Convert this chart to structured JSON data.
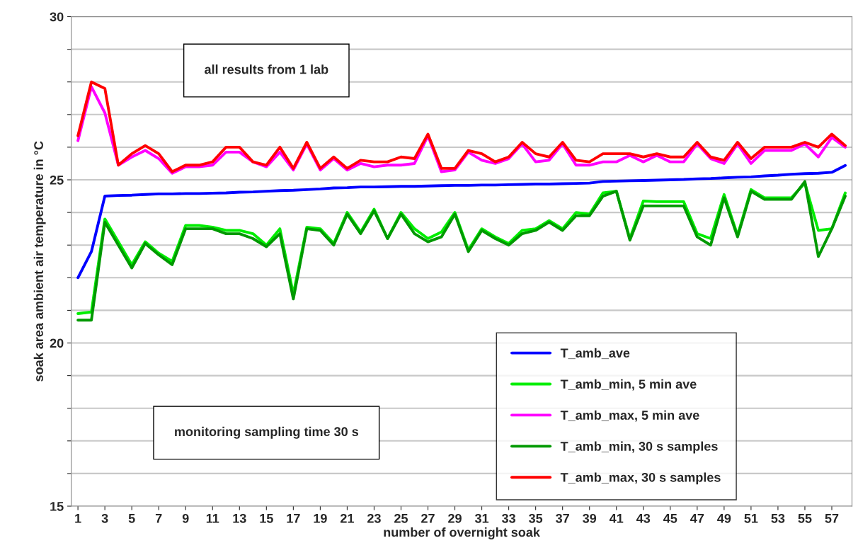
{
  "chart_data": {
    "type": "line",
    "xlabel": "number of overnight soak",
    "ylabel": "soak area ambient air temperature in °C",
    "annotations": [
      "all results from 1 lab",
      "monitoring sampling time 30 s"
    ],
    "x": [
      1,
      2,
      3,
      4,
      5,
      6,
      7,
      8,
      9,
      10,
      11,
      12,
      13,
      14,
      15,
      16,
      17,
      18,
      19,
      20,
      21,
      22,
      23,
      24,
      25,
      26,
      27,
      28,
      29,
      30,
      31,
      32,
      33,
      34,
      35,
      36,
      37,
      38,
      39,
      40,
      41,
      42,
      43,
      44,
      45,
      46,
      47,
      48,
      49,
      50,
      51,
      52,
      53,
      54,
      55,
      56,
      57,
      58
    ],
    "xlim": [
      0.5,
      58.5
    ],
    "xticks": [
      1,
      3,
      5,
      7,
      9,
      11,
      13,
      15,
      17,
      19,
      21,
      23,
      25,
      27,
      29,
      31,
      33,
      35,
      37,
      39,
      41,
      43,
      45,
      47,
      49,
      51,
      53,
      55,
      57
    ],
    "ylim": [
      15,
      30
    ],
    "yticks": [
      15,
      {
        "value": 16,
        "label": null
      },
      {
        "value": 17,
        "label": null
      },
      {
        "value": 18,
        "label": null
      },
      {
        "value": 19,
        "label": null
      },
      20,
      {
        "value": 21,
        "label": null
      },
      {
        "value": 22,
        "label": null
      },
      {
        "value": 23,
        "label": null
      },
      {
        "value": 24,
        "label": null
      },
      25,
      {
        "value": 26,
        "label": null
      },
      {
        "value": 27,
        "label": null
      },
      {
        "value": 28,
        "label": null
      },
      {
        "value": 29,
        "label": null
      },
      30
    ],
    "grid": "y",
    "legend": "bottom right",
    "marker": "none",
    "line_style": "solid",
    "series": [
      {
        "name": "T_amb_ave",
        "color": "#0000ff",
        "values": [
          22.0,
          22.8,
          24.5,
          24.52,
          24.53,
          24.55,
          24.57,
          24.57,
          24.58,
          24.58,
          24.59,
          24.6,
          24.62,
          24.63,
          24.65,
          24.67,
          24.68,
          24.7,
          24.72,
          24.75,
          24.76,
          24.78,
          24.78,
          24.79,
          24.8,
          24.8,
          24.81,
          24.82,
          24.83,
          24.83,
          24.84,
          24.84,
          24.85,
          24.86,
          24.87,
          24.87,
          24.88,
          24.89,
          24.9,
          24.95,
          24.96,
          24.97,
          24.98,
          24.99,
          25.0,
          25.01,
          25.03,
          25.04,
          25.06,
          25.08,
          25.09,
          25.12,
          25.14,
          25.17,
          25.19,
          25.2,
          25.23,
          25.44
        ]
      },
      {
        "name": "T_amb_min, 5 min ave",
        "color": "#00ee00",
        "values": [
          20.9,
          20.95,
          23.8,
          23.1,
          22.4,
          23.1,
          22.75,
          22.5,
          23.6,
          23.6,
          23.55,
          23.45,
          23.45,
          23.35,
          23.0,
          23.5,
          21.5,
          23.55,
          23.5,
          23.05,
          24.0,
          23.4,
          24.1,
          23.2,
          24.0,
          23.5,
          23.2,
          23.4,
          24.0,
          22.85,
          23.5,
          23.25,
          23.05,
          23.45,
          23.5,
          23.75,
          23.5,
          24.0,
          23.95,
          24.6,
          24.65,
          23.2,
          24.35,
          24.33,
          24.33,
          24.33,
          23.35,
          23.2,
          24.55,
          23.3,
          24.7,
          24.45,
          24.45,
          24.45,
          24.9,
          23.45,
          23.5,
          24.6
        ]
      },
      {
        "name": "T_amb_max, 5 min ave",
        "color": "#ff00ff",
        "values": [
          26.2,
          27.85,
          27.05,
          25.45,
          25.7,
          25.9,
          25.65,
          25.2,
          25.4,
          25.4,
          25.45,
          25.85,
          25.85,
          25.55,
          25.4,
          25.85,
          25.3,
          26.1,
          25.3,
          25.65,
          25.3,
          25.5,
          25.4,
          25.45,
          25.45,
          25.5,
          26.35,
          25.25,
          25.3,
          25.85,
          25.6,
          25.5,
          25.65,
          26.1,
          25.55,
          25.6,
          26.1,
          25.45,
          25.45,
          25.55,
          25.55,
          25.75,
          25.55,
          25.75,
          25.55,
          25.55,
          26.1,
          25.65,
          25.5,
          26.1,
          25.5,
          25.9,
          25.9,
          25.9,
          26.1,
          25.7,
          26.3,
          26.0
        ]
      },
      {
        "name": "T_amb_min, 30 s samples",
        "color": "#009900",
        "values": [
          20.7,
          20.7,
          23.7,
          23.0,
          22.3,
          23.05,
          22.7,
          22.4,
          23.5,
          23.5,
          23.5,
          23.35,
          23.35,
          23.2,
          22.95,
          23.35,
          21.35,
          23.5,
          23.45,
          23.0,
          23.95,
          23.35,
          24.05,
          23.2,
          23.95,
          23.35,
          23.1,
          23.25,
          23.95,
          22.8,
          23.45,
          23.2,
          23.0,
          23.35,
          23.45,
          23.7,
          23.45,
          23.9,
          23.9,
          24.5,
          24.65,
          23.15,
          24.2,
          24.2,
          24.2,
          24.2,
          23.25,
          23.0,
          24.45,
          23.25,
          24.65,
          24.4,
          24.4,
          24.4,
          24.95,
          22.65,
          23.5,
          24.5
        ]
      },
      {
        "name": "T_amb_max, 30 s samples",
        "color": "#ff0000",
        "values": [
          26.35,
          28.0,
          27.8,
          25.45,
          25.8,
          26.05,
          25.8,
          25.25,
          25.45,
          25.45,
          25.55,
          26.0,
          26.0,
          25.55,
          25.45,
          26.0,
          25.35,
          26.15,
          25.35,
          25.7,
          25.35,
          25.6,
          25.55,
          25.55,
          25.7,
          25.65,
          26.4,
          25.35,
          25.35,
          25.9,
          25.8,
          25.55,
          25.7,
          26.15,
          25.8,
          25.7,
          26.15,
          25.6,
          25.55,
          25.8,
          25.8,
          25.8,
          25.7,
          25.8,
          25.7,
          25.7,
          26.15,
          25.7,
          25.6,
          26.15,
          25.65,
          26.0,
          26.0,
          26.0,
          26.15,
          26.0,
          26.4,
          26.05
        ]
      }
    ]
  }
}
